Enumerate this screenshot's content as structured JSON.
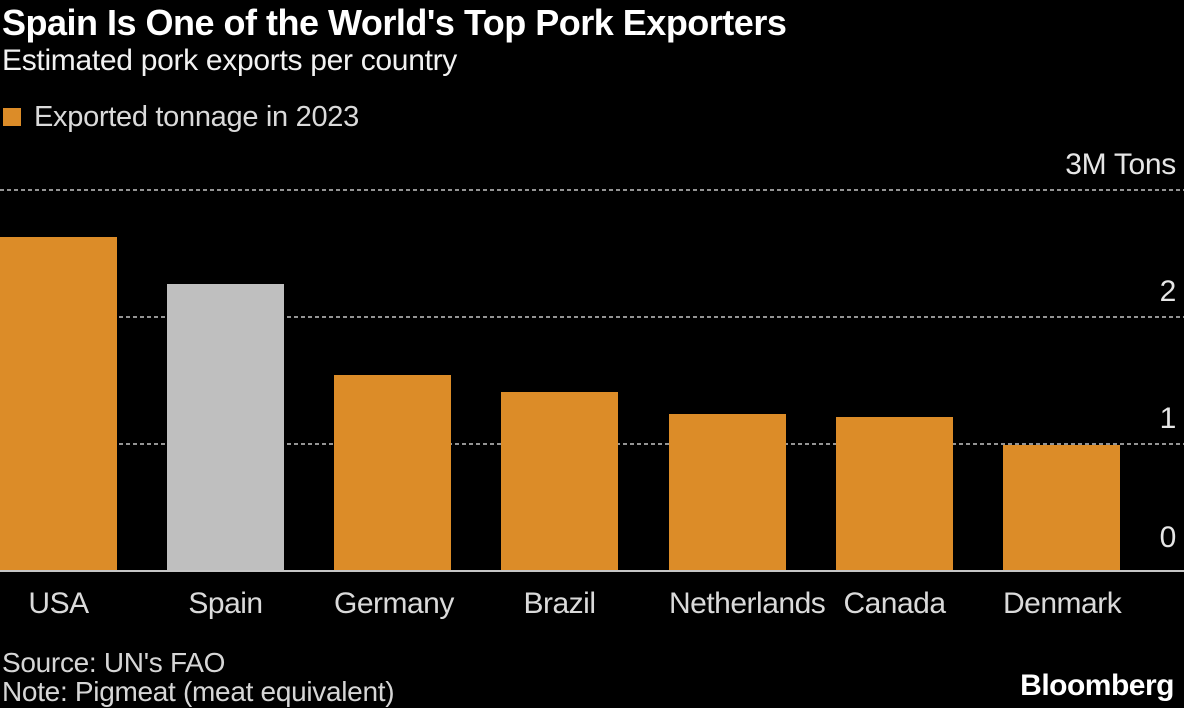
{
  "header": {
    "title": "Spain Is One of the World's Top Pork Exporters",
    "subtitle": "Estimated pork exports per country"
  },
  "legend": {
    "label": "Exported tonnage in 2023",
    "swatch_color": "#DC8C28"
  },
  "chart_data": {
    "type": "bar",
    "title": "Spain Is One of the World's Top Pork Exporters",
    "subtitle": "Estimated pork exports per country",
    "series_name": "Exported tonnage in 2023",
    "unit": "M Tons",
    "categories": [
      "USA",
      "Spain",
      "Germany",
      "Brazil",
      "Netherlands",
      "Canada",
      "Denmark"
    ],
    "values": [
      2.63,
      2.26,
      1.54,
      1.41,
      1.24,
      1.21,
      0.99
    ],
    "ylim": [
      0,
      3
    ],
    "y_ticks": [
      {
        "value": 3,
        "label": "3M Tons"
      },
      {
        "value": 2,
        "label": "2"
      },
      {
        "value": 1,
        "label": "1"
      },
      {
        "value": 0,
        "label": "0"
      }
    ],
    "grid": "horizontal dotted",
    "legend_position": "top-left",
    "bar_color": "#DC8C28",
    "highlight_category": "Spain",
    "highlight_color": "#BFBFBF",
    "background_color": "#000000"
  },
  "footer": {
    "source": "Source: UN's FAO",
    "note": "Note: Pigmeat (meat equivalent)",
    "brand": "Bloomberg"
  }
}
